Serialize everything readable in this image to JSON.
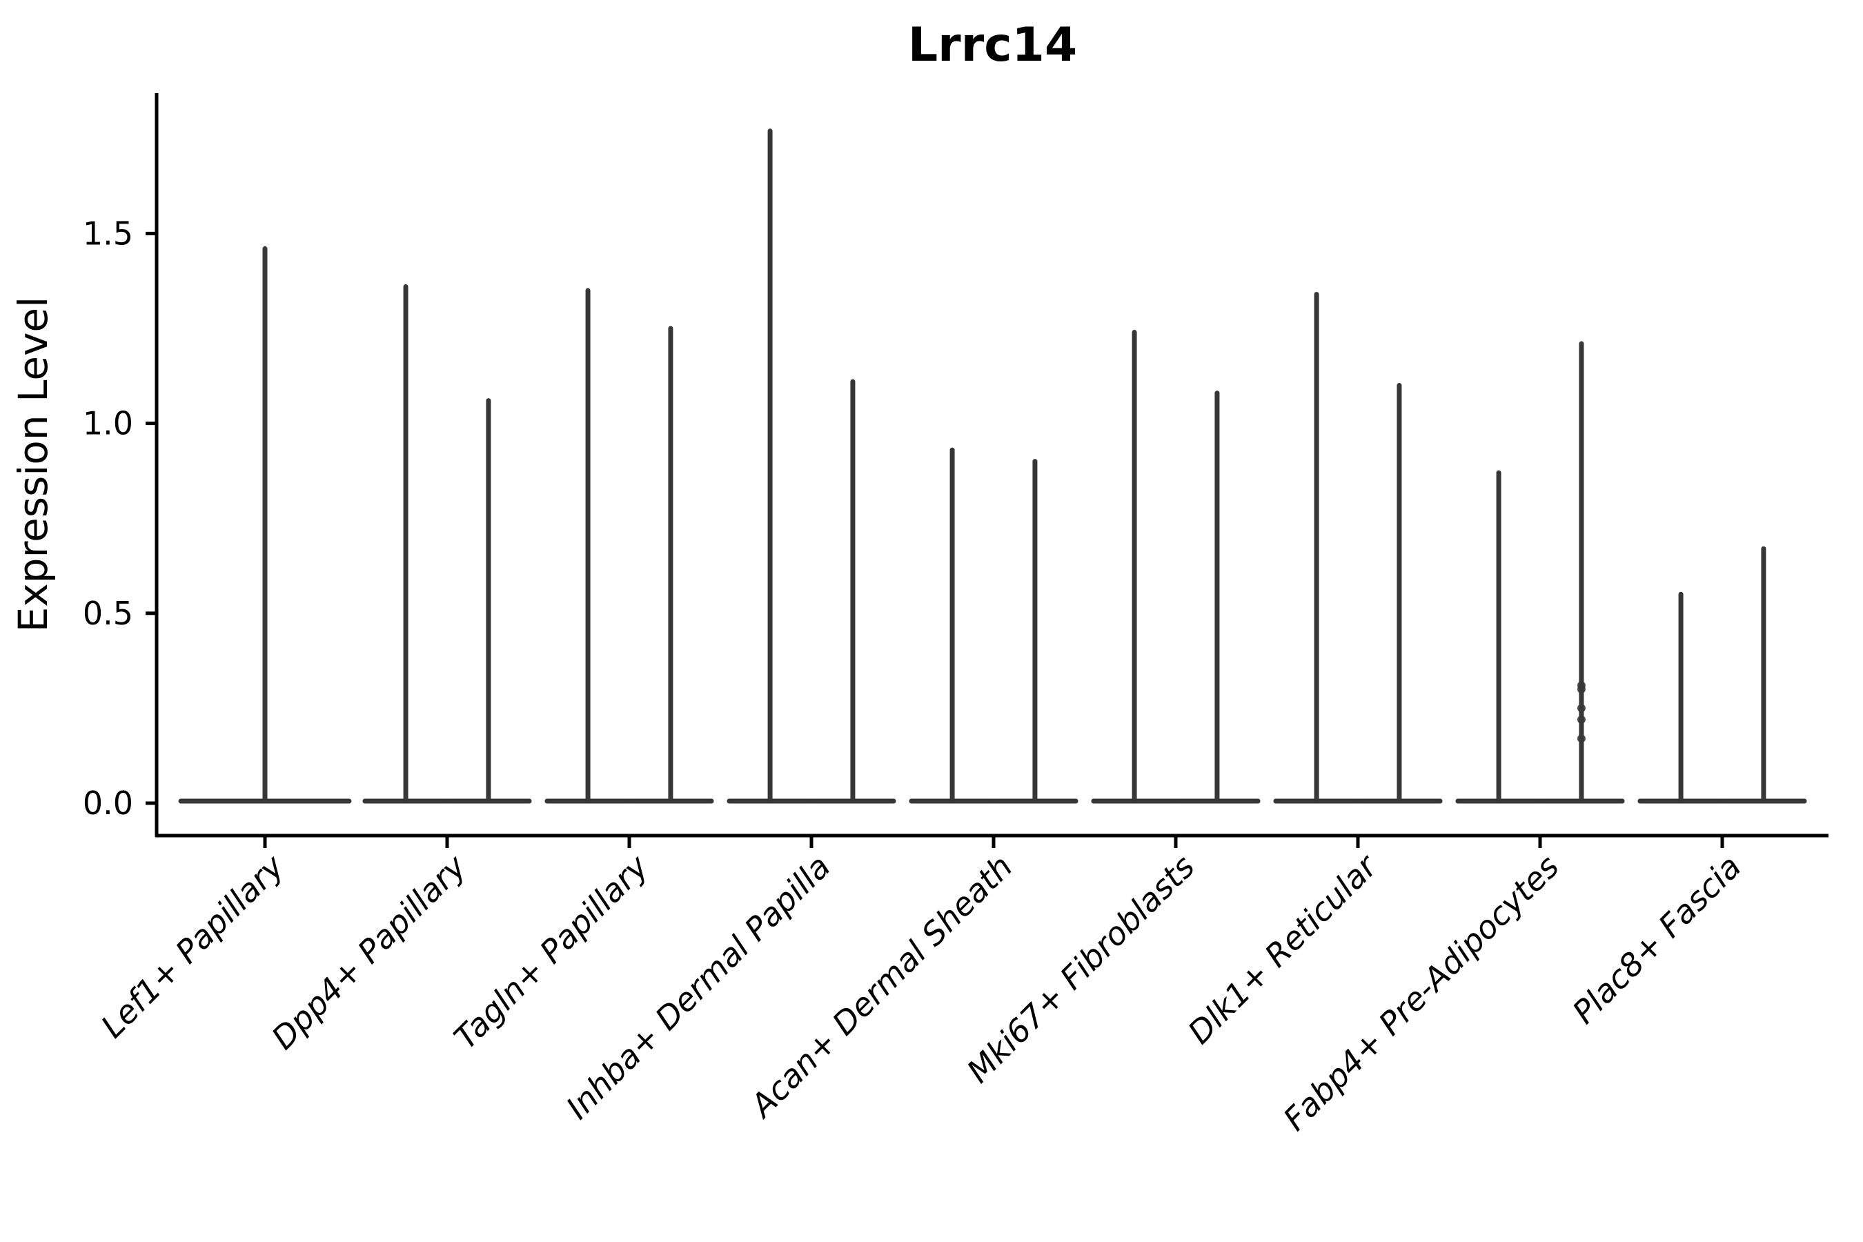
{
  "chart_data": {
    "type": "violin",
    "title": "Lrrc14",
    "xlabel": "",
    "ylabel": "Expression Level",
    "ytick_labels": [
      "0.0",
      "0.5",
      "1.0",
      "1.5"
    ],
    "yticks": [
      0.0,
      0.5,
      1.0,
      1.5
    ],
    "ylim": [
      -0.09,
      1.87
    ],
    "grid": false,
    "legend": "none",
    "line_color": "#373737",
    "axis_color": "#000000",
    "categories": [
      "Lef1+ Papillary",
      "Dpp4+ Papillary",
      "Tagln+ Papillary",
      "Inhba+ Dermal Papilla",
      "Acan+ Dermal Sheath",
      "Mki67+ Fibroblasts",
      "Dlk1+ Reticular",
      "Fabp4+ Pre-Adipocytes",
      "Plac8+ Fascia"
    ],
    "groups": [
      {
        "category": "Lef1+ Papillary",
        "violins": [
          {
            "offset_frac": 0.0,
            "half_width_frac": 0.462,
            "baseline": 0.0,
            "max": 1.46,
            "points": []
          }
        ]
      },
      {
        "category": "Dpp4+ Papillary",
        "violins": [
          {
            "offset_frac": -0.227,
            "half_width_frac": 0.224,
            "baseline": 0.0,
            "max": 1.36,
            "points": []
          },
          {
            "offset_frac": 0.227,
            "half_width_frac": 0.224,
            "baseline": 0.0,
            "max": 1.06,
            "points": []
          }
        ]
      },
      {
        "category": "Tagln+ Papillary",
        "violins": [
          {
            "offset_frac": -0.227,
            "half_width_frac": 0.224,
            "baseline": 0.0,
            "max": 1.35,
            "points": []
          },
          {
            "offset_frac": 0.227,
            "half_width_frac": 0.224,
            "baseline": 0.0,
            "max": 1.25,
            "points": []
          }
        ]
      },
      {
        "category": "Inhba+ Dermal Papilla",
        "violins": [
          {
            "offset_frac": -0.227,
            "half_width_frac": 0.224,
            "baseline": 0.0,
            "max": 1.77,
            "points": []
          },
          {
            "offset_frac": 0.227,
            "half_width_frac": 0.224,
            "baseline": 0.0,
            "max": 1.11,
            "points": []
          }
        ]
      },
      {
        "category": "Acan+ Dermal Sheath",
        "violins": [
          {
            "offset_frac": -0.227,
            "half_width_frac": 0.224,
            "baseline": 0.0,
            "max": 0.93,
            "points": []
          },
          {
            "offset_frac": 0.227,
            "half_width_frac": 0.224,
            "baseline": 0.0,
            "max": 0.9,
            "points": []
          }
        ]
      },
      {
        "category": "Mki67+ Fibroblasts",
        "violins": [
          {
            "offset_frac": -0.227,
            "half_width_frac": 0.224,
            "baseline": 0.0,
            "max": 1.24,
            "points": []
          },
          {
            "offset_frac": 0.227,
            "half_width_frac": 0.224,
            "baseline": 0.0,
            "max": 1.08,
            "points": []
          }
        ]
      },
      {
        "category": "Dlk1+ Reticular",
        "violins": [
          {
            "offset_frac": -0.227,
            "half_width_frac": 0.224,
            "baseline": 0.0,
            "max": 1.34,
            "points": []
          },
          {
            "offset_frac": 0.227,
            "half_width_frac": 0.224,
            "baseline": 0.0,
            "max": 1.1,
            "points": []
          }
        ]
      },
      {
        "category": "Fabp4+ Pre-Adipocytes",
        "violins": [
          {
            "offset_frac": -0.227,
            "half_width_frac": 0.224,
            "baseline": 0.0,
            "max": 0.87,
            "points": []
          },
          {
            "offset_frac": 0.227,
            "half_width_frac": 0.224,
            "baseline": 0.0,
            "max": 1.21,
            "points": [
              0.31,
              0.3,
              0.25,
              0.22,
              0.17
            ]
          }
        ]
      },
      {
        "category": "Plac8+ Fascia",
        "violins": [
          {
            "offset_frac": -0.227,
            "half_width_frac": 0.224,
            "baseline": 0.0,
            "max": 0.55,
            "points": []
          },
          {
            "offset_frac": 0.227,
            "half_width_frac": 0.224,
            "baseline": 0.0,
            "max": 0.67,
            "points": []
          }
        ]
      }
    ]
  }
}
